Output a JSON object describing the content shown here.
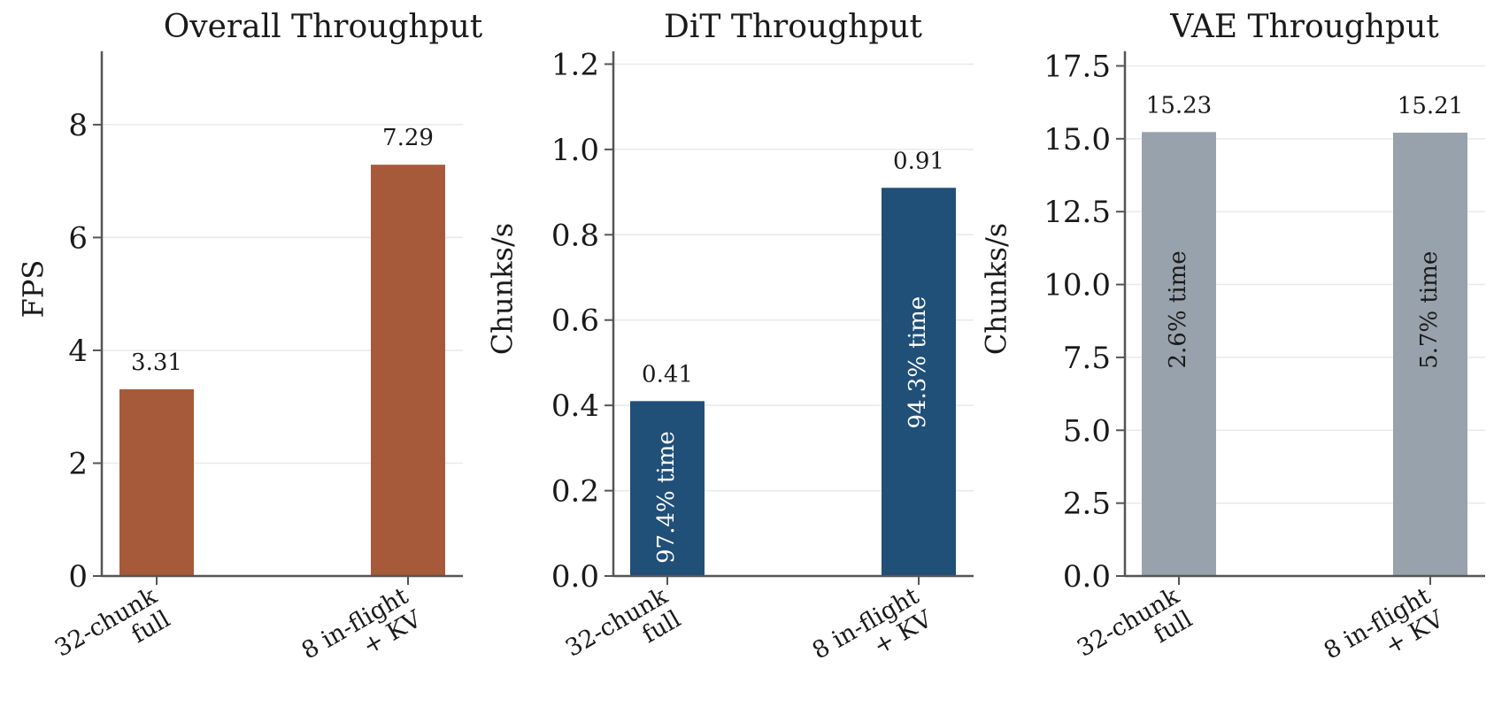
{
  "chart_data": [
    {
      "type": "bar",
      "title": "Overall Throughput",
      "ylabel": "FPS",
      "xlabel": "",
      "categories": [
        [
          "32-chunk",
          "full"
        ],
        [
          "8 in-flight",
          "+ KV"
        ]
      ],
      "values": [
        3.31,
        7.29
      ],
      "value_labels": [
        "3.31",
        "7.29"
      ],
      "inside_labels": [
        "",
        ""
      ],
      "inside_label_color": "#ffffff",
      "color": "#a65a3a",
      "ylim": [
        0,
        9.3
      ],
      "yticks": [
        0,
        2,
        4,
        6,
        8
      ],
      "ytick_labels": [
        "0",
        "2",
        "4",
        "6",
        "8"
      ],
      "grid": true
    },
    {
      "type": "bar",
      "title": "DiT Throughput",
      "ylabel": "Chunks/s",
      "xlabel": "",
      "categories": [
        [
          "32-chunk",
          "full"
        ],
        [
          "8 in-flight",
          "+ KV"
        ]
      ],
      "values": [
        0.41,
        0.91
      ],
      "value_labels": [
        "0.41",
        "0.91"
      ],
      "inside_labels": [
        "97.4% time",
        "94.3% time"
      ],
      "inside_label_color": "#ffffff",
      "color": "#204f78",
      "ylim": [
        0,
        1.23
      ],
      "yticks": [
        0,
        0.2,
        0.4,
        0.6,
        0.8,
        1.0,
        1.2
      ],
      "ytick_labels": [
        "0.0",
        "0.2",
        "0.4",
        "0.6",
        "0.8",
        "1.0",
        "1.2"
      ],
      "grid": true
    },
    {
      "type": "bar",
      "title": "VAE Throughput",
      "ylabel": "Chunks/s",
      "xlabel": "",
      "categories": [
        [
          "32-chunk",
          "full"
        ],
        [
          "8 in-flight",
          "+ KV"
        ]
      ],
      "values": [
        15.23,
        15.21
      ],
      "value_labels": [
        "15.23",
        "15.21"
      ],
      "inside_labels": [
        "2.6% time",
        "5.7% time"
      ],
      "inside_label_color": "#1a1a1a",
      "color": "#98a2ac",
      "ylim": [
        0,
        18.0
      ],
      "yticks": [
        0,
        2.5,
        5,
        7.5,
        10,
        12.5,
        15,
        17.5
      ],
      "ytick_labels": [
        "0.0",
        "2.5",
        "5.0",
        "7.5",
        "10.0",
        "12.5",
        "15.0",
        "17.5"
      ],
      "grid": true
    }
  ]
}
